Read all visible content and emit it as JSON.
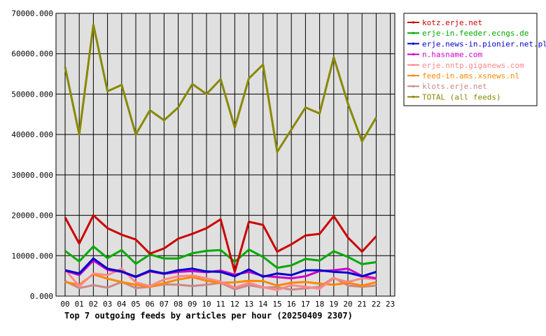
{
  "chart_data": {
    "type": "line",
    "title": "Top 7 outgoing feeds by articles per hour (20250409 2307)",
    "x_ticks": [
      "00",
      "01",
      "02",
      "03",
      "04",
      "05",
      "06",
      "07",
      "08",
      "09",
      "10",
      "11",
      "12",
      "13",
      "14",
      "15",
      "16",
      "17",
      "18",
      "19",
      "20",
      "21",
      "22",
      "23"
    ],
    "y_ticks": [
      "0.000",
      "10000.000",
      "20000.000",
      "30000.000",
      "40000.000",
      "50000.000",
      "60000.000",
      "70000.000"
    ],
    "ylim": [
      0,
      70000
    ],
    "grid": true,
    "legend_position": "right",
    "series": [
      {
        "name": "kotz.erje.net",
        "color": "#cc0000",
        "values": [
          19500,
          13000,
          20000,
          16800,
          15200,
          14000,
          10500,
          11800,
          14200,
          15400,
          16800,
          19000,
          6000,
          18400,
          17600,
          11000,
          12800,
          15000,
          15400,
          19800,
          14500,
          11000,
          14800
        ]
      },
      {
        "name": "erje-in.feeder.ecngs.de",
        "color": "#00aa00",
        "values": [
          11200,
          8600,
          12300,
          9400,
          11400,
          8000,
          10300,
          9300,
          9300,
          10600,
          11200,
          11400,
          8500,
          11500,
          9700,
          7000,
          7600,
          9200,
          8800,
          11100,
          9700,
          7900,
          8400
        ]
      },
      {
        "name": "erje.news-in.pionier.net.pl",
        "color": "#0000cc",
        "values": [
          6400,
          5600,
          9300,
          6800,
          6100,
          4800,
          6300,
          5600,
          6400,
          6800,
          6100,
          6000,
          4900,
          6600,
          4800,
          5600,
          5200,
          6400,
          6400,
          6000,
          5800,
          4900,
          6000
        ]
      },
      {
        "name": "n.hasname.com",
        "color": "#cc00cc",
        "values": [
          6300,
          5200,
          8800,
          6500,
          6000,
          4700,
          6100,
          5500,
          6000,
          6200,
          5900,
          6300,
          5300,
          6000,
          5000,
          4700,
          4400,
          4900,
          6200,
          6400,
          6800,
          5000,
          4400
        ]
      },
      {
        "name": "erje.nntp.giganews.com",
        "color": "#ff8888",
        "values": [
          6600,
          2400,
          5600,
          5200,
          6800,
          3400,
          2500,
          4100,
          4900,
          5100,
          4400,
          3600,
          2100,
          3300,
          2200,
          1500,
          2700,
          2300,
          1800,
          4400,
          3500,
          4400,
          4200
        ]
      },
      {
        "name": "feed-in.ams.xsnews.nl",
        "color": "#ff8800",
        "values": [
          3500,
          2800,
          5400,
          4300,
          3500,
          2800,
          2300,
          3200,
          4100,
          4700,
          3800,
          3300,
          3400,
          3800,
          3700,
          2600,
          3300,
          3500,
          3100,
          2800,
          3300,
          2600,
          3400
        ]
      },
      {
        "name": "klots.erje.net",
        "color": "#cc8888",
        "values": [
          3700,
          2000,
          2700,
          2100,
          3500,
          2000,
          2300,
          2900,
          2800,
          2500,
          2800,
          3300,
          1700,
          2700,
          2100,
          2200,
          1600,
          1900,
          2300,
          4600,
          2600,
          2300,
          2600
        ]
      },
      {
        "name": "TOTAL (all feeds)",
        "color": "#888800",
        "values": [
          56700,
          40000,
          67200,
          50700,
          52300,
          40000,
          46000,
          43500,
          46700,
          52500,
          50000,
          53700,
          41700,
          53900,
          57300,
          35700,
          41200,
          46700,
          45200,
          59100,
          47700,
          38300,
          44200
        ]
      }
    ]
  }
}
